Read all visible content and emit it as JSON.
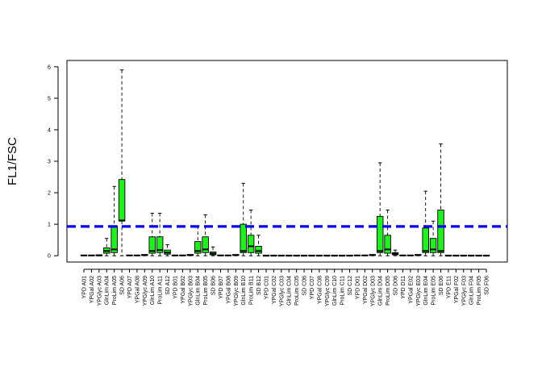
{
  "chart_data": {
    "type": "boxplot",
    "title": "",
    "xlabel": "",
    "ylabel": "FL1/FSC",
    "ylim": [
      -0.2,
      6.2
    ],
    "y_ticks": [
      0,
      1,
      2,
      3,
      4,
      5,
      6
    ],
    "tick_labels": [
      "0",
      "1",
      "2",
      "3",
      "4",
      "5",
      "6"
    ],
    "reference_line": {
      "y": 0.93,
      "color": "#0000ee",
      "style": "dashed"
    },
    "box_color": "#22ee22",
    "grid": false,
    "legend": "none",
    "categories": [
      "YPD A01",
      "YPGal A02",
      "YPGlyc A03",
      "GlnLim A04",
      "ProLim A05",
      "SD A06",
      "YPD A07",
      "YPGal A08",
      "YPGlyc A09",
      "GlnLim A10",
      "ProLim A11",
      "SD A12",
      "YPD B01",
      "YPGal B02",
      "YPGlyc B03",
      "GlnLim B04",
      "ProLim B05",
      "SD B06",
      "YPD B07",
      "YPGal B08",
      "YPGlyc B09",
      "GlnLim B10",
      "ProLim B11",
      "SD B12",
      "YPD C01",
      "YPGal C02",
      "YPGlyc C03",
      "GlnLim C04",
      "ProLim C05",
      "SD C06",
      "YPD C07",
      "YPGal C08",
      "YPGlyc C09",
      "GlnLim C10",
      "ProLim C11",
      "SD C12",
      "YPD D01",
      "YPGal D02",
      "YPGlyc D03",
      "GlnLim D04",
      "ProLim D05",
      "SD D06",
      "YPD D11",
      "YPGal E02",
      "YPGlyc E03",
      "GlnLim E04",
      "ProLim E05",
      "SD E06",
      "YPD E11",
      "YPGal F02",
      "YPGlyc F03",
      "GlnLim F04",
      "ProLim F05",
      "SD F06"
    ],
    "boxes": [
      {
        "min": 0.0,
        "q1": 0.0,
        "median": 0.01,
        "q3": 0.02,
        "max": 0.03
      },
      {
        "min": 0.0,
        "q1": 0.0,
        "median": 0.01,
        "q3": 0.02,
        "max": 0.03
      },
      {
        "min": 0.0,
        "q1": 0.0,
        "median": 0.01,
        "q3": 0.03,
        "max": 0.05
      },
      {
        "min": 0.0,
        "q1": 0.08,
        "median": 0.15,
        "q3": 0.25,
        "max": 0.55
      },
      {
        "min": 0.0,
        "q1": 0.1,
        "median": 0.2,
        "q3": 0.95,
        "max": 2.2
      },
      {
        "min": 0.0,
        "q1": 1.1,
        "median": 1.12,
        "q3": 2.42,
        "max": 5.9
      },
      {
        "min": 0.0,
        "q1": 0.0,
        "median": 0.01,
        "q3": 0.02,
        "max": 0.03
      },
      {
        "min": 0.0,
        "q1": 0.0,
        "median": 0.01,
        "q3": 0.02,
        "max": 0.03
      },
      {
        "min": 0.0,
        "q1": 0.01,
        "median": 0.02,
        "q3": 0.04,
        "max": 0.06
      },
      {
        "min": 0.0,
        "q1": 0.08,
        "median": 0.15,
        "q3": 0.6,
        "max": 1.35
      },
      {
        "min": 0.0,
        "q1": 0.1,
        "median": 0.18,
        "q3": 0.6,
        "max": 1.35
      },
      {
        "min": 0.0,
        "q1": 0.05,
        "median": 0.1,
        "q3": 0.18,
        "max": 0.35
      },
      {
        "min": 0.0,
        "q1": 0.0,
        "median": 0.01,
        "q3": 0.02,
        "max": 0.03
      },
      {
        "min": 0.0,
        "q1": 0.0,
        "median": 0.01,
        "q3": 0.02,
        "max": 0.03
      },
      {
        "min": 0.0,
        "q1": 0.01,
        "median": 0.02,
        "q3": 0.04,
        "max": 0.06
      },
      {
        "min": 0.0,
        "q1": 0.08,
        "median": 0.15,
        "q3": 0.45,
        "max": 0.95
      },
      {
        "min": 0.0,
        "q1": 0.1,
        "median": 0.2,
        "q3": 0.6,
        "max": 1.3
      },
      {
        "min": 0.0,
        "q1": 0.03,
        "median": 0.07,
        "q3": 0.12,
        "max": 0.28
      },
      {
        "min": 0.0,
        "q1": 0.0,
        "median": 0.01,
        "q3": 0.02,
        "max": 0.03
      },
      {
        "min": 0.0,
        "q1": 0.0,
        "median": 0.01,
        "q3": 0.02,
        "max": 0.03
      },
      {
        "min": 0.0,
        "q1": 0.01,
        "median": 0.02,
        "q3": 0.04,
        "max": 0.06
      },
      {
        "min": 0.0,
        "q1": 0.1,
        "median": 0.15,
        "q3": 1.0,
        "max": 2.3
      },
      {
        "min": 0.0,
        "q1": 0.1,
        "median": 0.3,
        "q3": 0.65,
        "max": 1.45
      },
      {
        "min": 0.0,
        "q1": 0.08,
        "median": 0.15,
        "q3": 0.3,
        "max": 0.65
      },
      {
        "min": 0.0,
        "q1": 0.0,
        "median": 0.0,
        "q3": 0.01,
        "max": 0.02
      },
      {
        "min": 0.0,
        "q1": 0.0,
        "median": 0.0,
        "q3": 0.01,
        "max": 0.02
      },
      {
        "min": 0.0,
        "q1": 0.0,
        "median": 0.0,
        "q3": 0.01,
        "max": 0.02
      },
      {
        "min": 0.0,
        "q1": 0.0,
        "median": 0.0,
        "q3": 0.01,
        "max": 0.02
      },
      {
        "min": 0.0,
        "q1": 0.0,
        "median": 0.0,
        "q3": 0.01,
        "max": 0.02
      },
      {
        "min": 0.0,
        "q1": 0.0,
        "median": 0.0,
        "q3": 0.01,
        "max": 0.02
      },
      {
        "min": 0.0,
        "q1": 0.0,
        "median": 0.0,
        "q3": 0.01,
        "max": 0.02
      },
      {
        "min": 0.0,
        "q1": 0.0,
        "median": 0.0,
        "q3": 0.01,
        "max": 0.02
      },
      {
        "min": 0.0,
        "q1": 0.0,
        "median": 0.0,
        "q3": 0.01,
        "max": 0.02
      },
      {
        "min": 0.0,
        "q1": 0.0,
        "median": 0.0,
        "q3": 0.01,
        "max": 0.02
      },
      {
        "min": 0.0,
        "q1": 0.0,
        "median": 0.0,
        "q3": 0.01,
        "max": 0.02
      },
      {
        "min": 0.0,
        "q1": 0.0,
        "median": 0.0,
        "q3": 0.01,
        "max": 0.02
      },
      {
        "min": 0.0,
        "q1": 0.0,
        "median": 0.01,
        "q3": 0.02,
        "max": 0.03
      },
      {
        "min": 0.0,
        "q1": 0.0,
        "median": 0.01,
        "q3": 0.02,
        "max": 0.03
      },
      {
        "min": 0.0,
        "q1": 0.01,
        "median": 0.02,
        "q3": 0.04,
        "max": 0.06
      },
      {
        "min": 0.0,
        "q1": 0.1,
        "median": 0.15,
        "q3": 1.25,
        "max": 2.95
      },
      {
        "min": 0.0,
        "q1": 0.08,
        "median": 0.2,
        "q3": 0.65,
        "max": 1.45
      },
      {
        "min": 0.0,
        "q1": 0.03,
        "median": 0.06,
        "q3": 0.1,
        "max": 0.18
      },
      {
        "min": 0.0,
        "q1": 0.0,
        "median": 0.01,
        "q3": 0.02,
        "max": 0.03
      },
      {
        "min": 0.0,
        "q1": 0.0,
        "median": 0.01,
        "q3": 0.02,
        "max": 0.03
      },
      {
        "min": 0.0,
        "q1": 0.01,
        "median": 0.02,
        "q3": 0.04,
        "max": 0.06
      },
      {
        "min": 0.0,
        "q1": 0.1,
        "median": 0.15,
        "q3": 0.88,
        "max": 2.05
      },
      {
        "min": 0.0,
        "q1": 0.1,
        "median": 0.2,
        "q3": 0.55,
        "max": 1.1
      },
      {
        "min": 0.0,
        "q1": 0.1,
        "median": 0.15,
        "q3": 1.45,
        "max": 3.55
      },
      {
        "min": 0.0,
        "q1": 0.0,
        "median": 0.0,
        "q3": 0.01,
        "max": 0.02
      },
      {
        "min": 0.0,
        "q1": 0.0,
        "median": 0.0,
        "q3": 0.01,
        "max": 0.02
      },
      {
        "min": 0.0,
        "q1": 0.0,
        "median": 0.0,
        "q3": 0.01,
        "max": 0.02
      },
      {
        "min": 0.0,
        "q1": 0.0,
        "median": 0.0,
        "q3": 0.01,
        "max": 0.02
      },
      {
        "min": 0.0,
        "q1": 0.0,
        "median": 0.0,
        "q3": 0.01,
        "max": 0.02
      },
      {
        "min": 0.0,
        "q1": 0.0,
        "median": 0.0,
        "q3": 0.01,
        "max": 0.02
      }
    ]
  }
}
